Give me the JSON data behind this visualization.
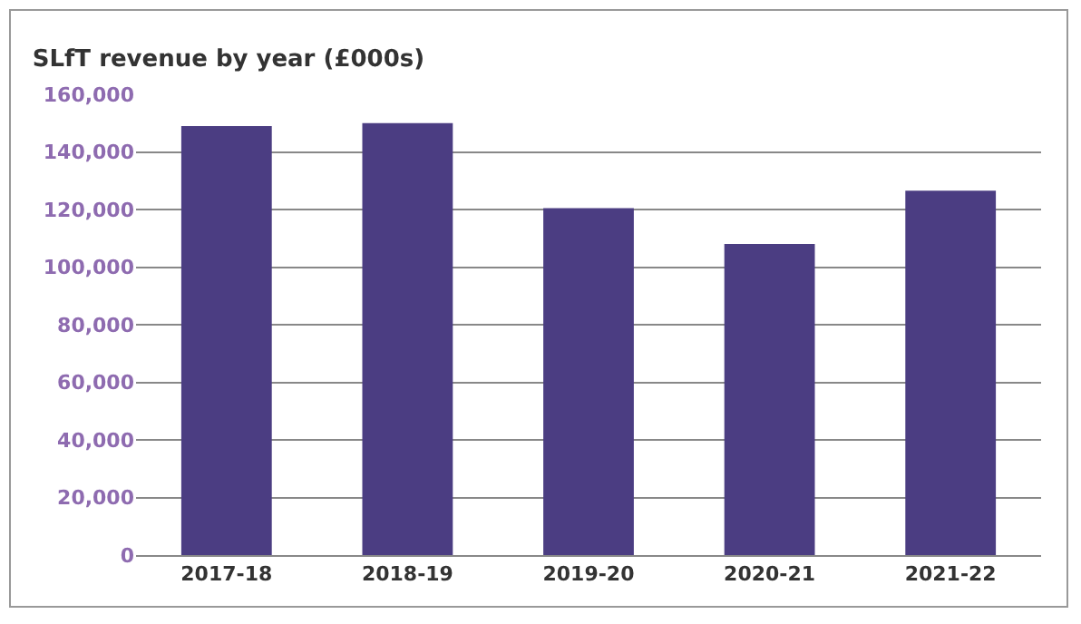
{
  "chart_data": {
    "type": "bar",
    "title": "SLfT revenue by year (£000s)",
    "categories": [
      "2017-18",
      "2018-19",
      "2019-20",
      "2020-21",
      "2021-22"
    ],
    "values": [
      149000,
      150000,
      120500,
      108000,
      126500
    ],
    "color": "#4b3d82",
    "ylim": [
      0,
      160000
    ],
    "yticks": [
      {
        "value": 0,
        "label": "0"
      },
      {
        "value": 20000,
        "label": "20,000"
      },
      {
        "value": 40000,
        "label": "40,000"
      },
      {
        "value": 60000,
        "label": "60,000"
      },
      {
        "value": 80000,
        "label": "80,000"
      },
      {
        "value": 100000,
        "label": "100,000"
      },
      {
        "value": 120000,
        "label": "120,000"
      },
      {
        "value": 140000,
        "label": "140,000"
      },
      {
        "value": 160000,
        "label": "160,000"
      }
    ],
    "grid": true
  }
}
